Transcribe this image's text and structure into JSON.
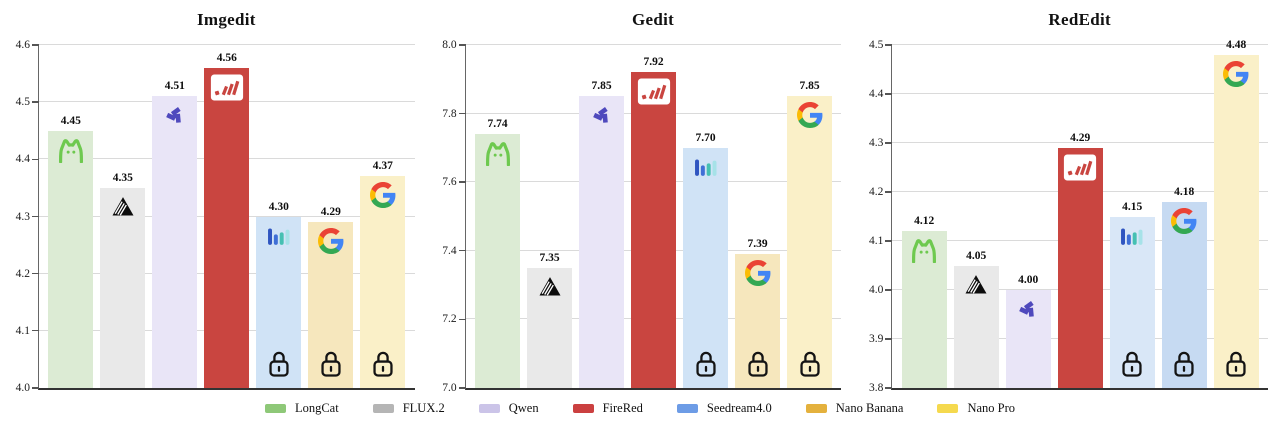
{
  "figure": {
    "background": "#ffffff",
    "series": [
      {
        "name": "LongCat",
        "icon": "longcat-icon",
        "legend_color": "#8ec878"
      },
      {
        "name": "FLUX.2",
        "icon": "flux-icon",
        "legend_color": "#b5b5b5"
      },
      {
        "name": "Qwen",
        "icon": "qwen-icon",
        "legend_color": "#cbc4e8"
      },
      {
        "name": "FireRed",
        "icon": "firered-icon",
        "legend_color": "#cb4040"
      },
      {
        "name": "Seedream4.0",
        "icon": "seedream-icon",
        "legend_color": "#6d9ce6"
      },
      {
        "name": "Nano Banana",
        "icon": "google-g-icon",
        "legend_color": "#e4b13d"
      },
      {
        "name": "Nano Pro",
        "icon": "google-g-icon",
        "legend_color": "#f5d94e"
      }
    ]
  },
  "chart_data": [
    {
      "type": "bar",
      "title": "Imgedit",
      "categories": [
        "LongCat",
        "FLUX.2",
        "Qwen",
        "FireRed",
        "Seedream4.0",
        "Nano Banana",
        "Nano Pro"
      ],
      "values": [
        4.45,
        4.35,
        4.51,
        4.56,
        4.3,
        4.29,
        4.37
      ],
      "value_labels": [
        "4.45",
        "4.35",
        "4.51",
        "4.56",
        "4.30",
        "4.29",
        "4.37"
      ],
      "ylim": [
        4.0,
        4.6
      ],
      "yticks": [
        "4.0",
        "4.1",
        "4.2",
        "4.3",
        "4.4",
        "4.5",
        "4.6"
      ],
      "grid": true,
      "legend_position": "bottom",
      "bar_colors": [
        "#dcebd4",
        "#e9e9e9",
        "#e9e5f7",
        "#c94540",
        "#d0e3f6",
        "#f6e7bd",
        "#faf0c8"
      ],
      "locked": [
        false,
        false,
        false,
        false,
        true,
        true,
        true
      ]
    },
    {
      "type": "bar",
      "title": "Gedit",
      "categories": [
        "LongCat",
        "FLUX.2",
        "Qwen",
        "FireRed",
        "Seedream4.0",
        "Nano Banana",
        "Nano Pro"
      ],
      "values": [
        7.74,
        7.35,
        7.85,
        7.92,
        7.7,
        7.39,
        7.85
      ],
      "value_labels": [
        "7.74",
        "7.35",
        "7.85",
        "7.92",
        "7.70",
        "7.39",
        "7.85"
      ],
      "ylim": [
        7.0,
        8.0
      ],
      "yticks": [
        "7.0",
        "7.2",
        "7.4",
        "7.6",
        "7.8",
        "8.0"
      ],
      "grid": true,
      "legend_position": "bottom",
      "bar_colors": [
        "#dcebd4",
        "#e9e9e9",
        "#e9e5f7",
        "#c94540",
        "#d0e3f6",
        "#f6e7bd",
        "#faf0c8"
      ],
      "locked": [
        false,
        false,
        false,
        false,
        true,
        true,
        true
      ]
    },
    {
      "type": "bar",
      "title": "RedEdit",
      "categories": [
        "LongCat",
        "FLUX.2",
        "Qwen",
        "FireRed",
        "Seedream4.0",
        "Nano Banana",
        "Nano Pro"
      ],
      "values": [
        4.12,
        4.05,
        4.0,
        4.29,
        4.15,
        4.18,
        4.48
      ],
      "value_labels": [
        "4.12",
        "4.05",
        "4.00",
        "4.29",
        "4.15",
        "4.18",
        "4.48"
      ],
      "ylim": [
        3.8,
        4.5
      ],
      "yticks": [
        "3.8",
        "3.9",
        "4.0",
        "4.1",
        "4.2",
        "4.3",
        "4.4",
        "4.5"
      ],
      "grid": true,
      "legend_position": "bottom",
      "bar_colors": [
        "#dcebd4",
        "#e9e9e9",
        "#e9e5f7",
        "#c94540",
        "#d9e7f7",
        "#c6daf2",
        "#faf0c8"
      ],
      "locked": [
        false,
        false,
        false,
        false,
        true,
        true,
        true
      ]
    }
  ],
  "legend": {
    "items": [
      "LongCat",
      "FLUX.2",
      "Qwen",
      "FireRed",
      "Seedream4.0",
      "Nano Banana",
      "Nano Pro"
    ]
  }
}
